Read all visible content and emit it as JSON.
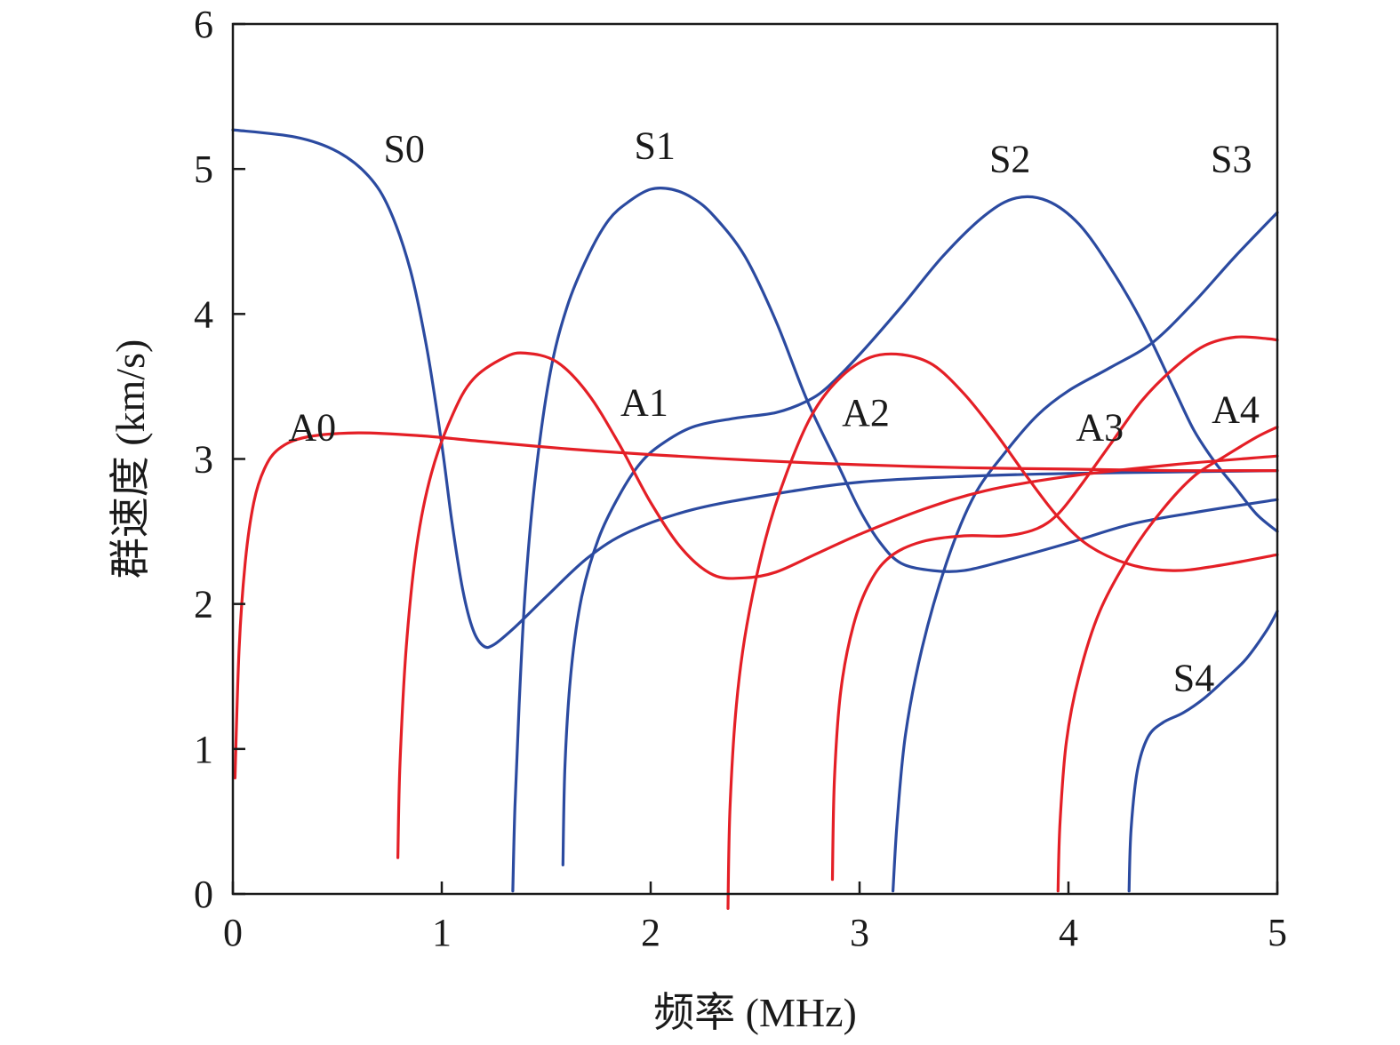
{
  "chart_data": {
    "type": "line",
    "xlabel": "频率 (MHz)",
    "ylabel": "群速度 (km/s)",
    "xlim": [
      0,
      5
    ],
    "ylim": [
      0,
      6
    ],
    "xticks": [
      "0",
      "1",
      "2",
      "3",
      "4",
      "5"
    ],
    "yticks": [
      "0",
      "1",
      "2",
      "3",
      "4",
      "5",
      "6"
    ],
    "grid": false,
    "colors": {
      "symmetric": "#2b4aa0",
      "antisymmetric": "#e41f26"
    },
    "series": [
      {
        "name": "S0",
        "family": "symmetric",
        "label_pos": [
          0.82,
          5.05
        ],
        "points": [
          [
            0.0,
            5.27
          ],
          [
            0.3,
            5.22
          ],
          [
            0.5,
            5.12
          ],
          [
            0.65,
            4.95
          ],
          [
            0.75,
            4.72
          ],
          [
            0.85,
            4.3
          ],
          [
            0.93,
            3.75
          ],
          [
            1.0,
            3.1
          ],
          [
            1.05,
            2.55
          ],
          [
            1.1,
            2.1
          ],
          [
            1.15,
            1.82
          ],
          [
            1.2,
            1.71
          ],
          [
            1.25,
            1.72
          ],
          [
            1.35,
            1.84
          ],
          [
            1.5,
            2.05
          ],
          [
            1.7,
            2.32
          ],
          [
            1.9,
            2.5
          ],
          [
            2.2,
            2.65
          ],
          [
            2.6,
            2.76
          ],
          [
            3.0,
            2.84
          ],
          [
            3.5,
            2.88
          ],
          [
            4.0,
            2.9
          ],
          [
            4.5,
            2.91
          ],
          [
            5.0,
            2.92
          ]
        ]
      },
      {
        "name": "S1",
        "family": "symmetric",
        "label_pos": [
          2.02,
          5.07
        ],
        "points": [
          [
            1.34,
            0.02
          ],
          [
            1.35,
            0.6
          ],
          [
            1.37,
            1.3
          ],
          [
            1.4,
            2.1
          ],
          [
            1.45,
            2.9
          ],
          [
            1.52,
            3.6
          ],
          [
            1.6,
            4.05
          ],
          [
            1.7,
            4.4
          ],
          [
            1.8,
            4.65
          ],
          [
            1.9,
            4.78
          ],
          [
            2.0,
            4.86
          ],
          [
            2.1,
            4.86
          ],
          [
            2.2,
            4.8
          ],
          [
            2.3,
            4.68
          ],
          [
            2.45,
            4.4
          ],
          [
            2.6,
            3.95
          ],
          [
            2.75,
            3.4
          ],
          [
            2.9,
            2.95
          ],
          [
            3.0,
            2.65
          ],
          [
            3.1,
            2.42
          ],
          [
            3.2,
            2.28
          ],
          [
            3.35,
            2.23
          ],
          [
            3.5,
            2.23
          ],
          [
            3.7,
            2.3
          ],
          [
            4.0,
            2.42
          ],
          [
            4.3,
            2.55
          ],
          [
            4.6,
            2.63
          ],
          [
            5.0,
            2.72
          ]
        ]
      },
      {
        "name": "",
        "family": "symmetric",
        "label_pos": null,
        "points": [
          [
            1.58,
            0.2
          ],
          [
            1.59,
            0.9
          ],
          [
            1.62,
            1.55
          ],
          [
            1.67,
            2.05
          ],
          [
            1.75,
            2.45
          ],
          [
            1.85,
            2.75
          ],
          [
            1.95,
            2.97
          ],
          [
            2.05,
            3.1
          ],
          [
            2.2,
            3.22
          ],
          [
            2.4,
            3.28
          ],
          [
            2.6,
            3.32
          ],
          [
            2.75,
            3.4
          ],
          [
            2.85,
            3.5
          ],
          [
            3.0,
            3.72
          ],
          [
            3.2,
            4.05
          ],
          [
            3.4,
            4.4
          ],
          [
            3.6,
            4.68
          ],
          [
            3.75,
            4.8
          ],
          [
            3.9,
            4.78
          ],
          [
            4.05,
            4.62
          ],
          [
            4.2,
            4.32
          ],
          [
            4.35,
            3.95
          ],
          [
            4.5,
            3.5
          ],
          [
            4.6,
            3.2
          ],
          [
            4.7,
            2.98
          ],
          [
            4.8,
            2.8
          ],
          [
            4.9,
            2.62
          ],
          [
            5.0,
            2.5
          ]
        ]
      },
      {
        "name": "S2",
        "family": "symmetric",
        "label_pos": [
          3.72,
          4.98
        ],
        "points": []
      },
      {
        "name": "S3",
        "family": "symmetric",
        "label_pos": [
          4.78,
          4.98
        ],
        "points": [
          [
            3.16,
            0.02
          ],
          [
            3.18,
            0.5
          ],
          [
            3.22,
            1.1
          ],
          [
            3.3,
            1.7
          ],
          [
            3.42,
            2.3
          ],
          [
            3.55,
            2.75
          ],
          [
            3.7,
            3.05
          ],
          [
            3.85,
            3.3
          ],
          [
            4.0,
            3.47
          ],
          [
            4.2,
            3.63
          ],
          [
            4.4,
            3.8
          ],
          [
            4.6,
            4.08
          ],
          [
            4.8,
            4.4
          ],
          [
            5.0,
            4.7
          ]
        ]
      },
      {
        "name": "S4",
        "family": "symmetric",
        "label_pos": [
          4.6,
          1.4
        ],
        "points": [
          [
            4.29,
            0.02
          ],
          [
            4.3,
            0.45
          ],
          [
            4.33,
            0.85
          ],
          [
            4.38,
            1.08
          ],
          [
            4.45,
            1.18
          ],
          [
            4.55,
            1.25
          ],
          [
            4.65,
            1.35
          ],
          [
            4.75,
            1.48
          ],
          [
            4.85,
            1.62
          ],
          [
            4.95,
            1.82
          ],
          [
            5.0,
            1.95
          ]
        ]
      },
      {
        "name": "A0",
        "family": "antisymmetric",
        "label_pos": [
          0.38,
          3.13
        ],
        "points": [
          [
            0.01,
            0.8
          ],
          [
            0.03,
            1.7
          ],
          [
            0.06,
            2.3
          ],
          [
            0.1,
            2.7
          ],
          [
            0.15,
            2.93
          ],
          [
            0.22,
            3.07
          ],
          [
            0.35,
            3.15
          ],
          [
            0.6,
            3.18
          ],
          [
            0.9,
            3.16
          ],
          [
            1.2,
            3.12
          ],
          [
            1.6,
            3.07
          ],
          [
            2.0,
            3.03
          ],
          [
            2.5,
            2.99
          ],
          [
            3.0,
            2.96
          ],
          [
            3.5,
            2.94
          ],
          [
            4.0,
            2.93
          ],
          [
            4.5,
            2.92
          ],
          [
            5.0,
            2.92
          ]
        ]
      },
      {
        "name": "A1",
        "family": "antisymmetric",
        "label_pos": [
          1.97,
          3.3
        ],
        "points": [
          [
            0.79,
            0.25
          ],
          [
            0.8,
            0.9
          ],
          [
            0.83,
            1.7
          ],
          [
            0.88,
            2.4
          ],
          [
            0.95,
            2.9
          ],
          [
            1.05,
            3.3
          ],
          [
            1.15,
            3.55
          ],
          [
            1.3,
            3.7
          ],
          [
            1.4,
            3.73
          ],
          [
            1.55,
            3.67
          ],
          [
            1.7,
            3.45
          ],
          [
            1.85,
            3.1
          ],
          [
            2.0,
            2.7
          ],
          [
            2.15,
            2.38
          ],
          [
            2.3,
            2.2
          ],
          [
            2.45,
            2.18
          ],
          [
            2.6,
            2.22
          ],
          [
            2.8,
            2.35
          ],
          [
            3.0,
            2.48
          ],
          [
            3.3,
            2.65
          ],
          [
            3.6,
            2.78
          ],
          [
            4.0,
            2.88
          ],
          [
            4.5,
            2.96
          ],
          [
            5.0,
            3.02
          ]
        ]
      },
      {
        "name": "A2",
        "family": "antisymmetric",
        "label_pos": [
          3.03,
          3.23
        ],
        "points": [
          [
            2.37,
            -0.1
          ],
          [
            2.38,
            0.6
          ],
          [
            2.41,
            1.3
          ],
          [
            2.46,
            1.85
          ],
          [
            2.55,
            2.45
          ],
          [
            2.65,
            2.9
          ],
          [
            2.77,
            3.3
          ],
          [
            2.9,
            3.55
          ],
          [
            3.05,
            3.7
          ],
          [
            3.2,
            3.72
          ],
          [
            3.35,
            3.65
          ],
          [
            3.5,
            3.45
          ],
          [
            3.65,
            3.18
          ],
          [
            3.8,
            2.88
          ],
          [
            3.95,
            2.6
          ],
          [
            4.1,
            2.4
          ],
          [
            4.3,
            2.27
          ],
          [
            4.5,
            2.23
          ],
          [
            4.7,
            2.26
          ],
          [
            5.0,
            2.34
          ]
        ]
      },
      {
        "name": "A3",
        "family": "antisymmetric",
        "label_pos": [
          4.15,
          3.13
        ],
        "points": [
          [
            2.87,
            0.1
          ],
          [
            2.88,
            0.8
          ],
          [
            2.91,
            1.4
          ],
          [
            2.97,
            1.85
          ],
          [
            3.05,
            2.15
          ],
          [
            3.15,
            2.33
          ],
          [
            3.3,
            2.43
          ],
          [
            3.5,
            2.47
          ],
          [
            3.7,
            2.47
          ],
          [
            3.85,
            2.52
          ],
          [
            3.95,
            2.62
          ],
          [
            4.05,
            2.8
          ],
          [
            4.2,
            3.1
          ],
          [
            4.35,
            3.4
          ],
          [
            4.5,
            3.62
          ],
          [
            4.65,
            3.78
          ],
          [
            4.8,
            3.84
          ],
          [
            4.95,
            3.83
          ],
          [
            5.0,
            3.82
          ]
        ]
      },
      {
        "name": "A4",
        "family": "antisymmetric",
        "label_pos": [
          4.8,
          3.25
        ],
        "points": [
          [
            3.95,
            0.02
          ],
          [
            3.96,
            0.5
          ],
          [
            3.99,
            1.05
          ],
          [
            4.05,
            1.5
          ],
          [
            4.15,
            1.95
          ],
          [
            4.3,
            2.35
          ],
          [
            4.45,
            2.65
          ],
          [
            4.6,
            2.88
          ],
          [
            4.75,
            3.02
          ],
          [
            4.9,
            3.15
          ],
          [
            5.0,
            3.22
          ]
        ]
      }
    ]
  }
}
